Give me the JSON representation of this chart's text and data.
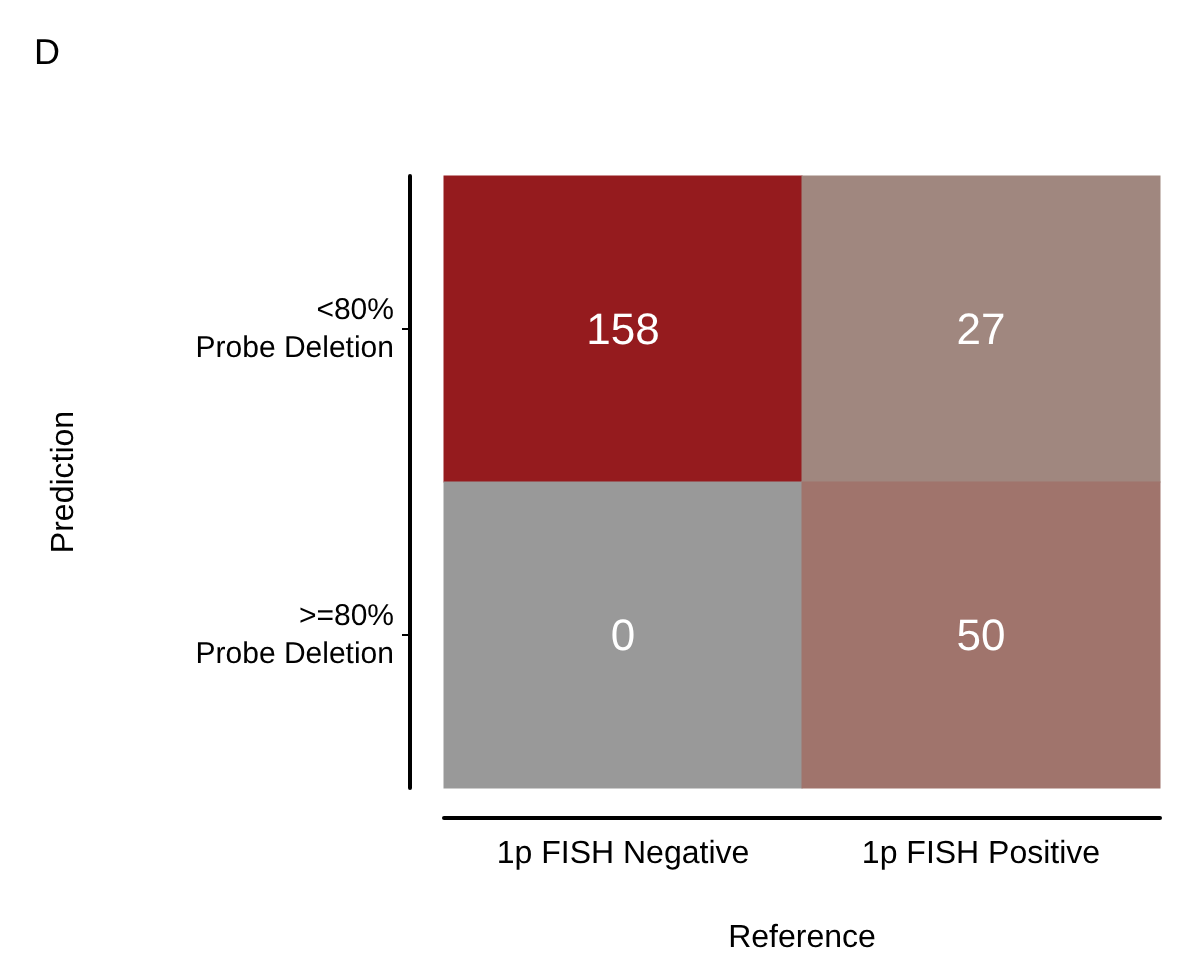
{
  "chart_data": {
    "type": "heatmap",
    "title": "D",
    "xlabel": "Reference",
    "ylabel": "Prediction",
    "categories": [
      "1p FISH Negative",
      "1p FISH Positive"
    ],
    "y_categories": [
      "<80%\nProbe Deletion",
      ">=80%\nProbe Deletion"
    ],
    "cells": [
      [
        158,
        27
      ],
      [
        0,
        50
      ]
    ],
    "colors": [
      [
        "#951b1e",
        "#a0877f"
      ],
      [
        "#999999",
        "#a0746c"
      ]
    ],
    "data_labels": true,
    "grid": false
  }
}
